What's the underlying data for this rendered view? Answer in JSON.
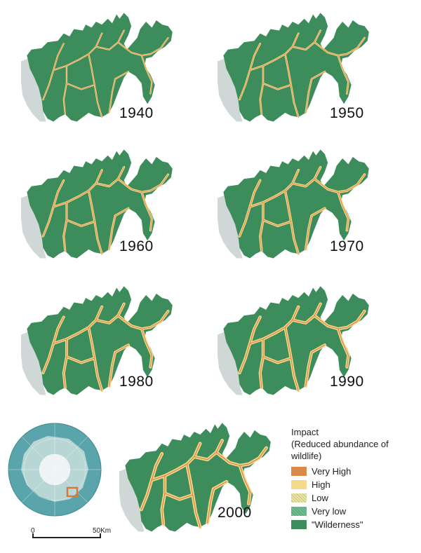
{
  "panels": [
    {
      "year": "1940"
    },
    {
      "year": "1950"
    },
    {
      "year": "1960"
    },
    {
      "year": "1970"
    },
    {
      "year": "1980"
    },
    {
      "year": "1990"
    },
    {
      "year": "2000"
    }
  ],
  "legend": {
    "title_line1": "Impact",
    "title_line2": "(Reduced abundance of wildlife)",
    "items": [
      {
        "label": "Very High",
        "color": "#d98a48"
      },
      {
        "label": "High",
        "color": "#f5d98c"
      },
      {
        "label": "Low",
        "color": "#e8e3a8"
      },
      {
        "label": "Very low",
        "color": "#5fae82"
      },
      {
        "label": "\"Wilderness\"",
        "color": "#3d8c5c"
      }
    ]
  },
  "scale_bar": {
    "start_label": "0",
    "end_label": "50Km"
  },
  "colors": {
    "land": "#3d8c5c",
    "outside_region": "#cfd8d6",
    "impact_high": "#f5d98c",
    "impact_very_high": "#d98a48",
    "globe_ocean": "#5aa5ac",
    "globe_land": "#b7d6d4",
    "inset_marker": "#d9783c"
  }
}
